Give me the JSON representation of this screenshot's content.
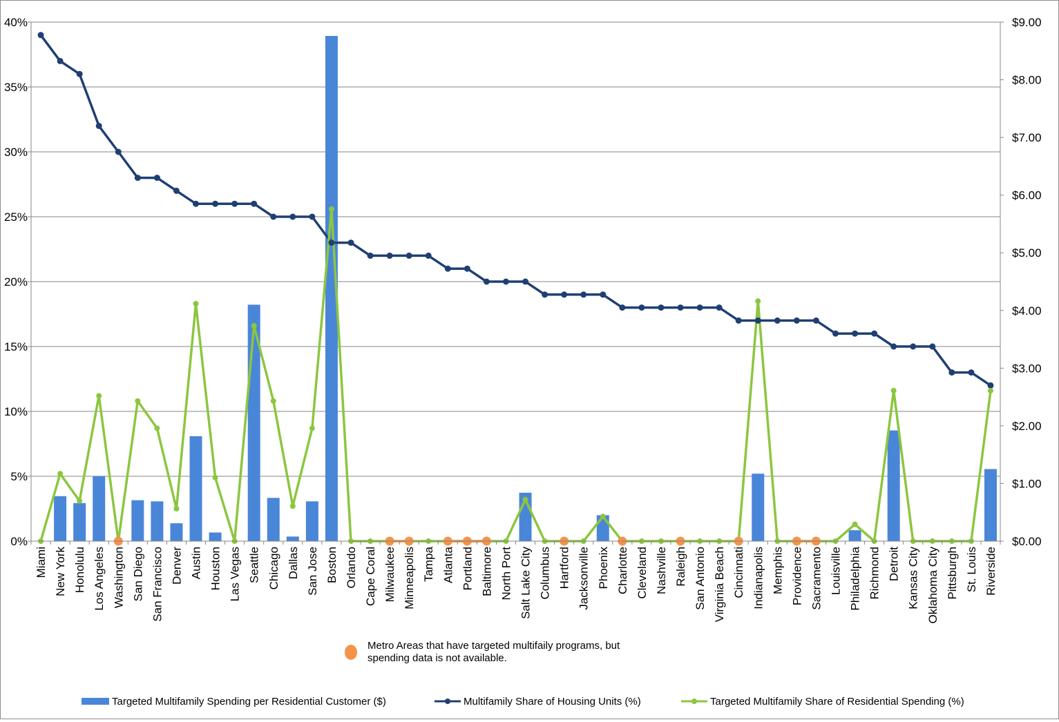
{
  "chart_data": {
    "type": "bar",
    "title": "",
    "categories": [
      "Miami",
      "New York",
      "Honolulu",
      "Los Angeles",
      "Washington",
      "San Diego",
      "San Francisco",
      "Denver",
      "Austin",
      "Houston",
      "Las Vegas",
      "Seattle",
      "Chicago",
      "Dallas",
      "San Jose",
      "Boston",
      "Orlando",
      "Cape Coral",
      "Milwaukee",
      "Minneapolis",
      "Tampa",
      "Atlanta",
      "Portland",
      "Baltimore",
      "North Port",
      "Salt Lake City",
      "Columbus",
      "Hartford",
      "Jacksonville",
      "Phoenix",
      "Charlotte",
      "Cleveland",
      "Nashville",
      "Raleigh",
      "San Antonio",
      "Virginia Beach",
      "Cincinnati",
      "Indianapolis",
      "Memphis",
      "Providence",
      "Sacramento",
      "Louisville",
      "Philadelphia",
      "Richmond",
      "Detroit",
      "Kansas City",
      "Oklahoma City",
      "Pittsburgh",
      "St. Louis",
      "Riverside"
    ],
    "left_axis": {
      "ylim": [
        0,
        40
      ],
      "ticks": [
        "0%",
        "5%",
        "10%",
        "15%",
        "20%",
        "25%",
        "30%",
        "35%",
        "40%"
      ],
      "tick_values": [
        0,
        5,
        10,
        15,
        20,
        25,
        30,
        35,
        40
      ]
    },
    "right_axis": {
      "ylim": [
        0,
        9
      ],
      "ticks": [
        "$0.00",
        "$1.00",
        "$2.00",
        "$3.00",
        "$4.00",
        "$5.00",
        "$6.00",
        "$7.00",
        "$8.00",
        "$9.00"
      ],
      "tick_values": [
        0,
        1,
        2,
        3,
        4,
        5,
        6,
        7,
        8,
        9
      ]
    },
    "grid": true,
    "legend_position": "bottom",
    "series": [
      {
        "name": "Targeted Multifamily Spending per Residential Customer ($)",
        "type": "bar",
        "axis": "right",
        "color": "#4a86d8",
        "values": [
          0,
          0.78,
          0.66,
          1.13,
          0,
          0.71,
          0.69,
          0.31,
          1.82,
          0.15,
          0,
          4.1,
          0.75,
          0.08,
          0.69,
          8.76,
          0,
          0,
          0,
          0,
          0,
          0,
          0,
          0,
          0,
          0.84,
          0,
          0,
          0,
          0.45,
          0,
          0,
          0,
          0,
          0,
          0,
          0,
          1.17,
          0,
          0,
          0,
          0,
          0.19,
          0,
          1.92,
          0,
          0,
          0,
          0,
          1.25
        ]
      },
      {
        "name": "Multifamily Share of Housing Units (%)",
        "type": "line",
        "axis": "left",
        "color": "#1f3f73",
        "values": [
          39,
          37,
          36,
          32,
          30,
          28,
          28,
          27,
          26,
          26,
          26,
          26,
          25,
          25,
          25,
          23,
          23,
          22,
          22,
          22,
          22,
          21,
          21,
          20,
          20,
          20,
          19,
          19,
          19,
          19,
          18,
          18,
          18,
          18,
          18,
          18,
          17,
          17,
          17,
          17,
          17,
          16,
          16,
          16,
          15,
          15,
          15,
          13,
          13,
          12
        ]
      },
      {
        "name": "Targeted Multifamily Share of Residential Spending (%)",
        "type": "line",
        "axis": "left",
        "color": "#8cc63f",
        "values": [
          0,
          5.2,
          3.1,
          11.2,
          0,
          10.8,
          8.7,
          2.5,
          18.3,
          4.9,
          0,
          16.6,
          10.8,
          2.7,
          8.7,
          25.6,
          0,
          0,
          0,
          0,
          0,
          0,
          0,
          0,
          0,
          3.2,
          0,
          0,
          0,
          1.9,
          0,
          0,
          0,
          0,
          0,
          0,
          0,
          18.5,
          0,
          0,
          0,
          0,
          1.3,
          0,
          11.6,
          0,
          0,
          0,
          0,
          11.6
        ]
      }
    ],
    "no_data_marker": {
      "color": "#f4934a",
      "label": "Metro Areas that have targeted multifaily programs, but spending data is not available.",
      "categories": [
        "Washington",
        "Milwaukee",
        "Minneapolis",
        "Atlanta",
        "Portland",
        "Baltimore",
        "Hartford",
        "Charlotte",
        "Raleigh",
        "Cincinnati",
        "Providence",
        "Sacramento"
      ]
    },
    "colors": {
      "axis": "#868686",
      "grid": "#868686",
      "frame": "#8c8c8c"
    }
  }
}
